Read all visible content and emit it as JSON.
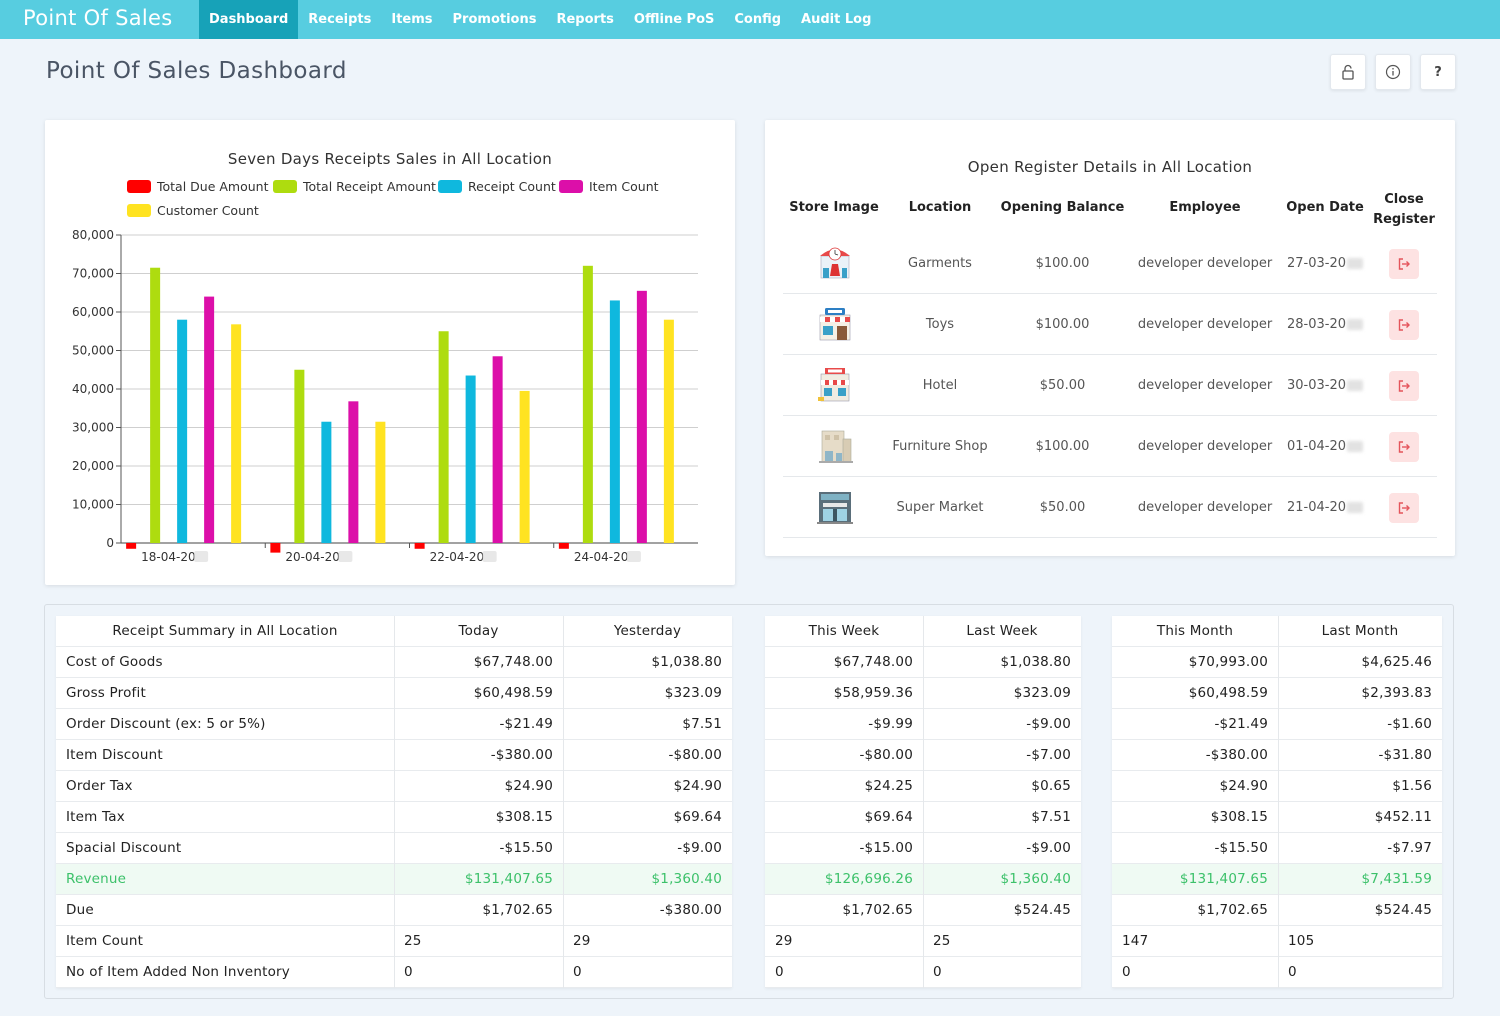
{
  "app": {
    "brand": "Point Of Sales"
  },
  "nav": {
    "items": [
      {
        "label": "Dashboard",
        "active": true
      },
      {
        "label": "Receipts"
      },
      {
        "label": "Items"
      },
      {
        "label": "Promotions"
      },
      {
        "label": "Reports"
      },
      {
        "label": "Offline PoS"
      },
      {
        "label": "Config"
      },
      {
        "label": "Audit Log"
      }
    ]
  },
  "page": {
    "title": "Point Of Sales Dashboard",
    "help_label": "?"
  },
  "chart_data": {
    "type": "bar",
    "title": "Seven Days Receipts Sales in All Location",
    "categories": [
      "18-04-20",
      "20-04-20",
      "22-04-20",
      "24-04-20"
    ],
    "ylim": [
      0,
      80000
    ],
    "yticks": [
      "0",
      "10,000",
      "20,000",
      "30,000",
      "40,000",
      "50,000",
      "60,000",
      "70,000",
      "80,000"
    ],
    "grid": true,
    "legend_position": "top",
    "series": [
      {
        "name": "Total Due Amount",
        "color": "#ff0000",
        "values": [
          -1500,
          -2500,
          -1500,
          -1500
        ]
      },
      {
        "name": "Total Receipt Amount",
        "color": "#aedc0f",
        "values": [
          71500,
          45000,
          55000,
          72000
        ]
      },
      {
        "name": "Receipt Count",
        "color": "#0fb8de",
        "values": [
          58000,
          31500,
          43500,
          63000
        ]
      },
      {
        "name": "Item Count",
        "color": "#dc0fa9",
        "values": [
          64000,
          36800,
          48500,
          65500
        ]
      },
      {
        "name": "Customer Count",
        "color": "#ffe321",
        "values": [
          56800,
          31500,
          39500,
          58000
        ]
      }
    ]
  },
  "register": {
    "title": "Open Register Details in All Location",
    "headers": {
      "store_image": "Store Image",
      "location": "Location",
      "opening_balance": "Opening Balance",
      "employee": "Employee",
      "open_date": "Open Date",
      "close_register_1": "Close",
      "close_register_2": "Register"
    },
    "rows": [
      {
        "icon": "garments-store-icon",
        "location": "Garments",
        "balance": "$100.00",
        "employee": "developer developer",
        "date": "27-03-20"
      },
      {
        "icon": "toy-store-icon",
        "location": "Toys",
        "balance": "$100.00",
        "employee": "developer developer",
        "date": "28-03-20"
      },
      {
        "icon": "hotel-icon",
        "location": "Hotel",
        "balance": "$50.00",
        "employee": "developer developer",
        "date": "30-03-20"
      },
      {
        "icon": "furniture-shop-icon",
        "location": "Furniture Shop",
        "balance": "$100.00",
        "employee": "developer developer",
        "date": "01-04-20"
      },
      {
        "icon": "supermarket-icon",
        "location": "Super Market",
        "balance": "$50.00",
        "employee": "developer developer",
        "date": "21-04-20"
      }
    ]
  },
  "summary": {
    "title": "Receipt Summary in All Location",
    "columns": [
      "Today",
      "Yesterday",
      "This Week",
      "Last Week",
      "This Month",
      "Last Month"
    ],
    "rows": [
      {
        "label": "Cost of Goods",
        "values": [
          "$67,748.00",
          "$1,038.80",
          "$67,748.00",
          "$1,038.80",
          "$70,993.00",
          "$4,625.46"
        ]
      },
      {
        "label": "Gross Profit",
        "values": [
          "$60,498.59",
          "$323.09",
          "$58,959.36",
          "$323.09",
          "$60,498.59",
          "$2,393.83"
        ]
      },
      {
        "label": "Order Discount (ex: 5 or 5%)",
        "values": [
          "-$21.49",
          "$7.51",
          "-$9.99",
          "-$9.00",
          "-$21.49",
          "-$1.60"
        ]
      },
      {
        "label": "Item Discount",
        "values": [
          "-$380.00",
          "-$80.00",
          "-$80.00",
          "-$7.00",
          "-$380.00",
          "-$31.80"
        ]
      },
      {
        "label": "Order Tax",
        "values": [
          "$24.90",
          "$24.90",
          "$24.25",
          "$0.65",
          "$24.90",
          "$1.56"
        ]
      },
      {
        "label": "Item Tax",
        "values": [
          "$308.15",
          "$69.64",
          "$69.64",
          "$7.51",
          "$308.15",
          "$452.11"
        ]
      },
      {
        "label": "Spacial Discount",
        "values": [
          "-$15.50",
          "-$9.00",
          "-$15.00",
          "-$9.00",
          "-$15.50",
          "-$7.97"
        ]
      },
      {
        "label": "Revenue",
        "values": [
          "$131,407.65",
          "$1,360.40",
          "$126,696.26",
          "$1,360.40",
          "$131,407.65",
          "$7,431.59"
        ],
        "highlight": true
      },
      {
        "label": "Due",
        "values": [
          "$1,702.65",
          "-$380.00",
          "$1,702.65",
          "$524.45",
          "$1,702.65",
          "$524.45"
        ]
      },
      {
        "label": "Item Count",
        "values": [
          "25",
          "29",
          "29",
          "25",
          "147",
          "105"
        ],
        "left": true
      },
      {
        "label": "No of Item Added Non Inventory",
        "values": [
          "0",
          "0",
          "0",
          "0",
          "0",
          "0"
        ],
        "left": true
      }
    ]
  }
}
